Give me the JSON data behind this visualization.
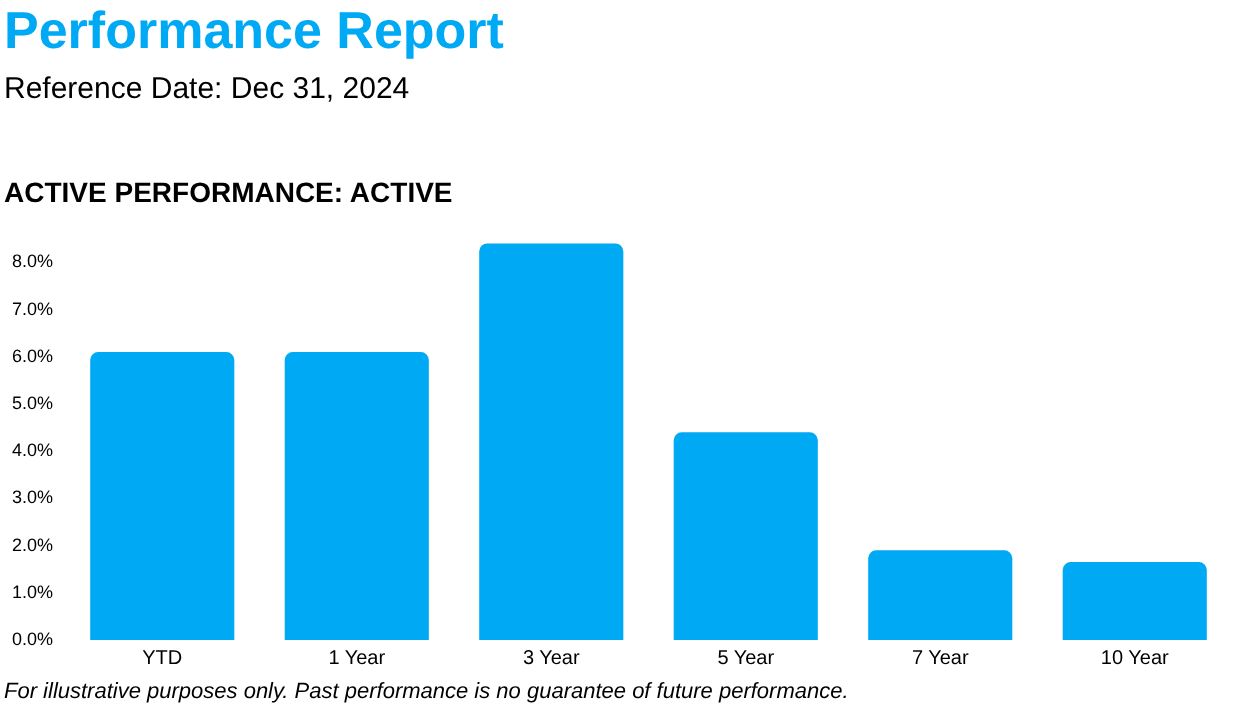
{
  "chart_data": {
    "type": "bar",
    "title": "ACTIVE PERFORMANCE: ACTIVE",
    "subtitle": "Reference Date: Dec 31, 2024",
    "annotations": [
      "Performance Report",
      "For illustrative purposes only. Past performance is no guarantee of future performance."
    ],
    "categories": [
      "YTD",
      "1 Year",
      "3 Year",
      "5 Year",
      "7 Year",
      "10 Year"
    ],
    "values": [
      6.1,
      6.1,
      8.4,
      4.4,
      1.9,
      1.65
    ],
    "color": "#00a9f4",
    "ylim": [
      0,
      8.5
    ],
    "yticks": [
      {
        "value": 0,
        "label": "0.0%"
      },
      {
        "value": 1,
        "label": "1.0%"
      },
      {
        "value": 2,
        "label": "2.0%"
      },
      {
        "value": 3,
        "label": "3.0%"
      },
      {
        "value": 4,
        "label": "4.0%"
      },
      {
        "value": 5,
        "label": "5.0%"
      },
      {
        "value": 6,
        "label": "6.0%"
      },
      {
        "value": 7,
        "label": "7.0%"
      },
      {
        "value": 8,
        "label": "8.0%"
      }
    ],
    "grid": false,
    "legend": false
  }
}
